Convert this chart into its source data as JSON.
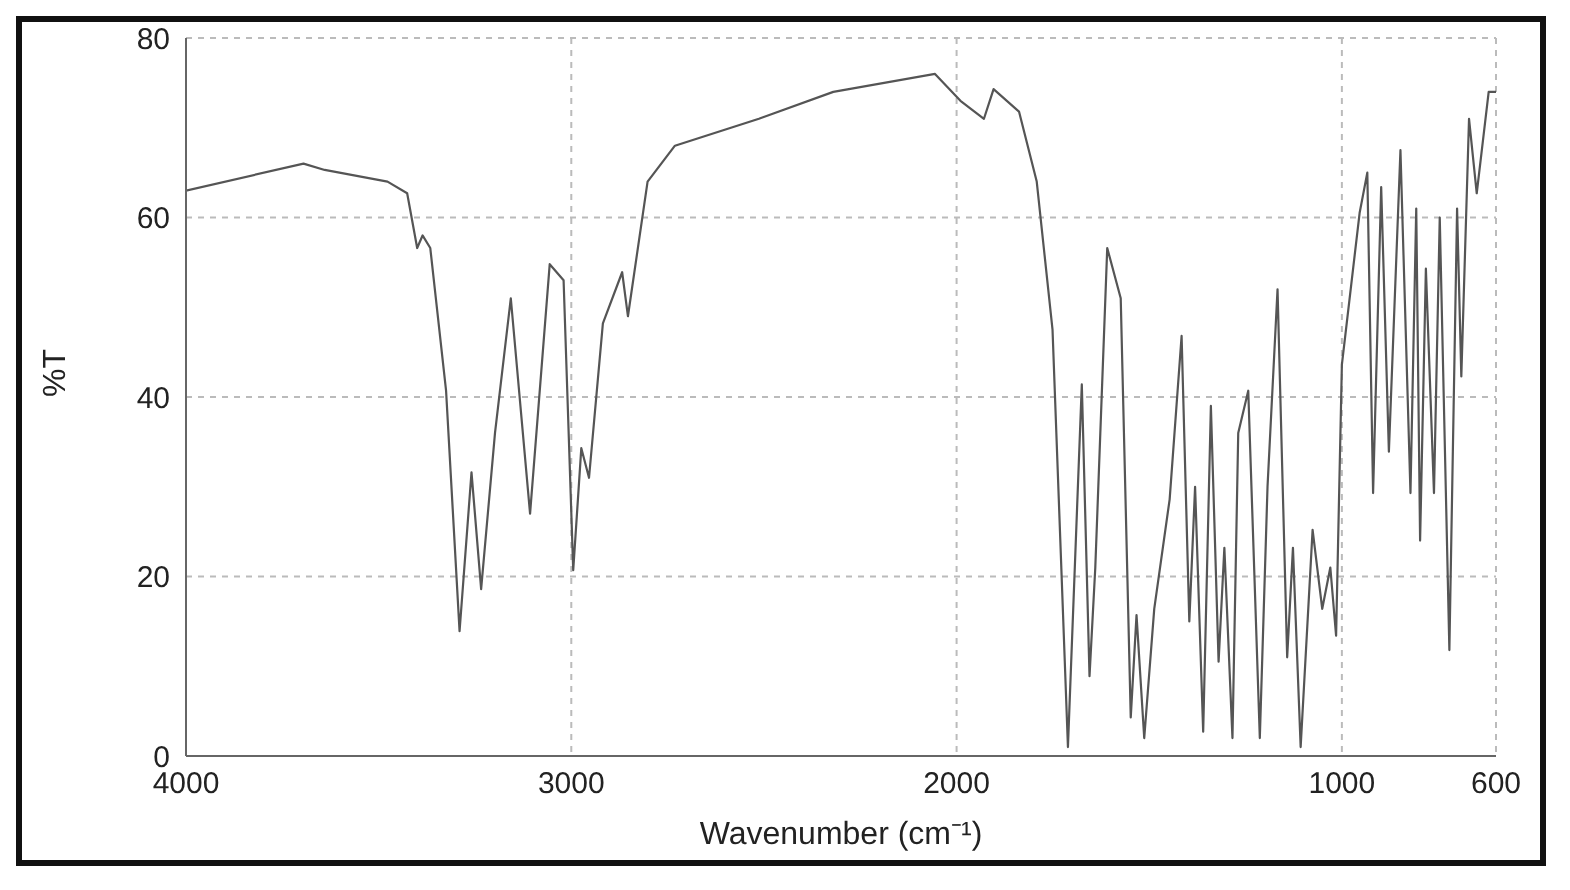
{
  "chart_data": {
    "type": "line",
    "xlabel": "Wavenumber (cm⁻¹)",
    "ylabel": "%T",
    "xlim": [
      4000,
      600
    ],
    "xticks": [
      4000,
      3000,
      2000,
      1000,
      600
    ],
    "ylim": [
      0,
      80
    ],
    "yticks": [
      0,
      20,
      40,
      60,
      80
    ],
    "grid": true,
    "marker": "none",
    "line_style": "solid",
    "x": [
      4000,
      3695,
      3640,
      3477,
      3426,
      3400,
      3386,
      3366,
      3325,
      3290,
      3259,
      3234,
      3198,
      3157,
      3107,
      3056,
      3020,
      2995,
      2974,
      2954,
      2918,
      2868,
      2853,
      2802,
      2731,
      2513,
      2320,
      2056,
      1990,
      1929,
      1904,
      1838,
      1792,
      1751,
      1711,
      1675,
      1655,
      1640,
      1609,
      1574,
      1548,
      1533,
      1513,
      1487,
      1447,
      1416,
      1396,
      1381,
      1360,
      1340,
      1320,
      1305,
      1284,
      1269,
      1243,
      1213,
      1193,
      1167,
      1142,
      1127,
      1107,
      1076,
      1051,
      1030,
      1015,
      1000,
      954,
      934,
      919,
      898,
      878,
      848,
      822,
      807,
      797,
      782,
      761,
      746,
      721,
      701,
      690,
      670,
      650,
      619,
      600
    ],
    "series": [
      {
        "color": "#555555",
        "values": [
          63,
          66,
          65.3,
          64,
          62.7,
          56.6,
          58,
          56.6,
          40.7,
          13.9,
          31.6,
          18.6,
          36,
          51,
          27,
          54.8,
          53,
          20.7,
          34.3,
          31,
          48.2,
          53.9,
          49,
          64,
          68,
          71,
          74,
          76,
          73,
          71,
          74.3,
          71.8,
          64,
          47.5,
          1,
          41.4,
          8.9,
          21,
          56.6,
          51,
          4.3,
          15.7,
          2,
          16.4,
          28.6,
          46.8,
          15,
          30,
          2.7,
          39,
          10.5,
          23.2,
          2,
          36,
          40.7,
          2,
          30,
          52,
          11,
          23.2,
          1,
          25.2,
          16.4,
          21,
          13.4,
          43.6,
          60.5,
          65,
          29.3,
          63.4,
          33.9,
          67.5,
          29.3,
          61,
          24,
          54.3,
          29.3,
          60,
          11.8,
          61,
          42.3,
          71,
          62.7,
          74,
          74
        ]
      }
    ]
  }
}
